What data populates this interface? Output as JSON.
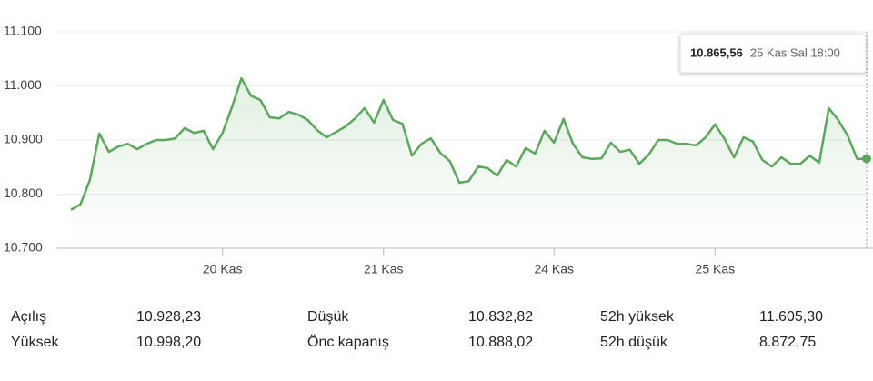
{
  "chart_data": {
    "type": "line",
    "categories": [
      null,
      null,
      null,
      null,
      null,
      null,
      null,
      null,
      null,
      null,
      null,
      null,
      null,
      null,
      null,
      null,
      "20 Kas",
      null,
      null,
      null,
      null,
      null,
      null,
      null,
      null,
      null,
      null,
      null,
      null,
      null,
      null,
      null,
      null,
      "21 Kas",
      null,
      null,
      null,
      null,
      null,
      null,
      null,
      null,
      null,
      null,
      null,
      null,
      null,
      null,
      null,
      null,
      null,
      "24 Kas",
      null,
      null,
      null,
      null,
      null,
      null,
      null,
      null,
      null,
      null,
      null,
      null,
      null,
      null,
      null,
      null,
      "25 Kas",
      null,
      null,
      null,
      null,
      null,
      null,
      null,
      null,
      null,
      null,
      null,
      null,
      null,
      null,
      null,
      null
    ],
    "values": [
      10771,
      10781,
      10826,
      10912,
      10878,
      10888,
      10893,
      10883,
      10893,
      10900,
      10900,
      10903,
      10922,
      10913,
      10917,
      10883,
      10913,
      10961,
      11014,
      10982,
      10974,
      10942,
      10940,
      10952,
      10947,
      10937,
      10918,
      10905,
      10915,
      10925,
      10940,
      10959,
      10932,
      10974,
      10937,
      10930,
      10871,
      10893,
      10903,
      10876,
      10861,
      10821,
      10824,
      10851,
      10848,
      10834,
      10863,
      10851,
      10885,
      10875,
      10917,
      10895,
      10939,
      10893,
      10868,
      10865,
      10866,
      10895,
      10878,
      10882,
      10856,
      10873,
      10900,
      10900,
      10893,
      10893,
      10890,
      10905,
      10929,
      10902,
      10868,
      10905,
      10897,
      10863,
      10851,
      10868,
      10856,
      10856,
      10871,
      10858,
      10959,
      10937,
      10908,
      10865,
      10865.56
    ],
    "color": "#5aa85a",
    "ylim": [
      10700,
      11100
    ],
    "yticks": [
      {
        "value": 10700,
        "label": "10.700"
      },
      {
        "value": 10800,
        "label": "10.800"
      },
      {
        "value": 10900,
        "label": "10.900"
      },
      {
        "value": 11000,
        "label": "11.000"
      },
      {
        "value": 11100,
        "label": "11.100"
      }
    ],
    "grid": true,
    "tooltip": {
      "label": "10.865,56",
      "date": "25 Kas Sal 18:00"
    }
  },
  "stats": [
    {
      "label": "Açılış",
      "value": "10.928,23"
    },
    {
      "label": "Düşük",
      "value": "10.832,82"
    },
    {
      "label": "52h yüksek",
      "value": "11.605,30"
    },
    {
      "label": "Yüksek",
      "value": "10.998,20"
    },
    {
      "label": "Önc kapanış",
      "value": "10.888,02"
    },
    {
      "label": "52h düşük",
      "value": "8.872,75"
    }
  ]
}
